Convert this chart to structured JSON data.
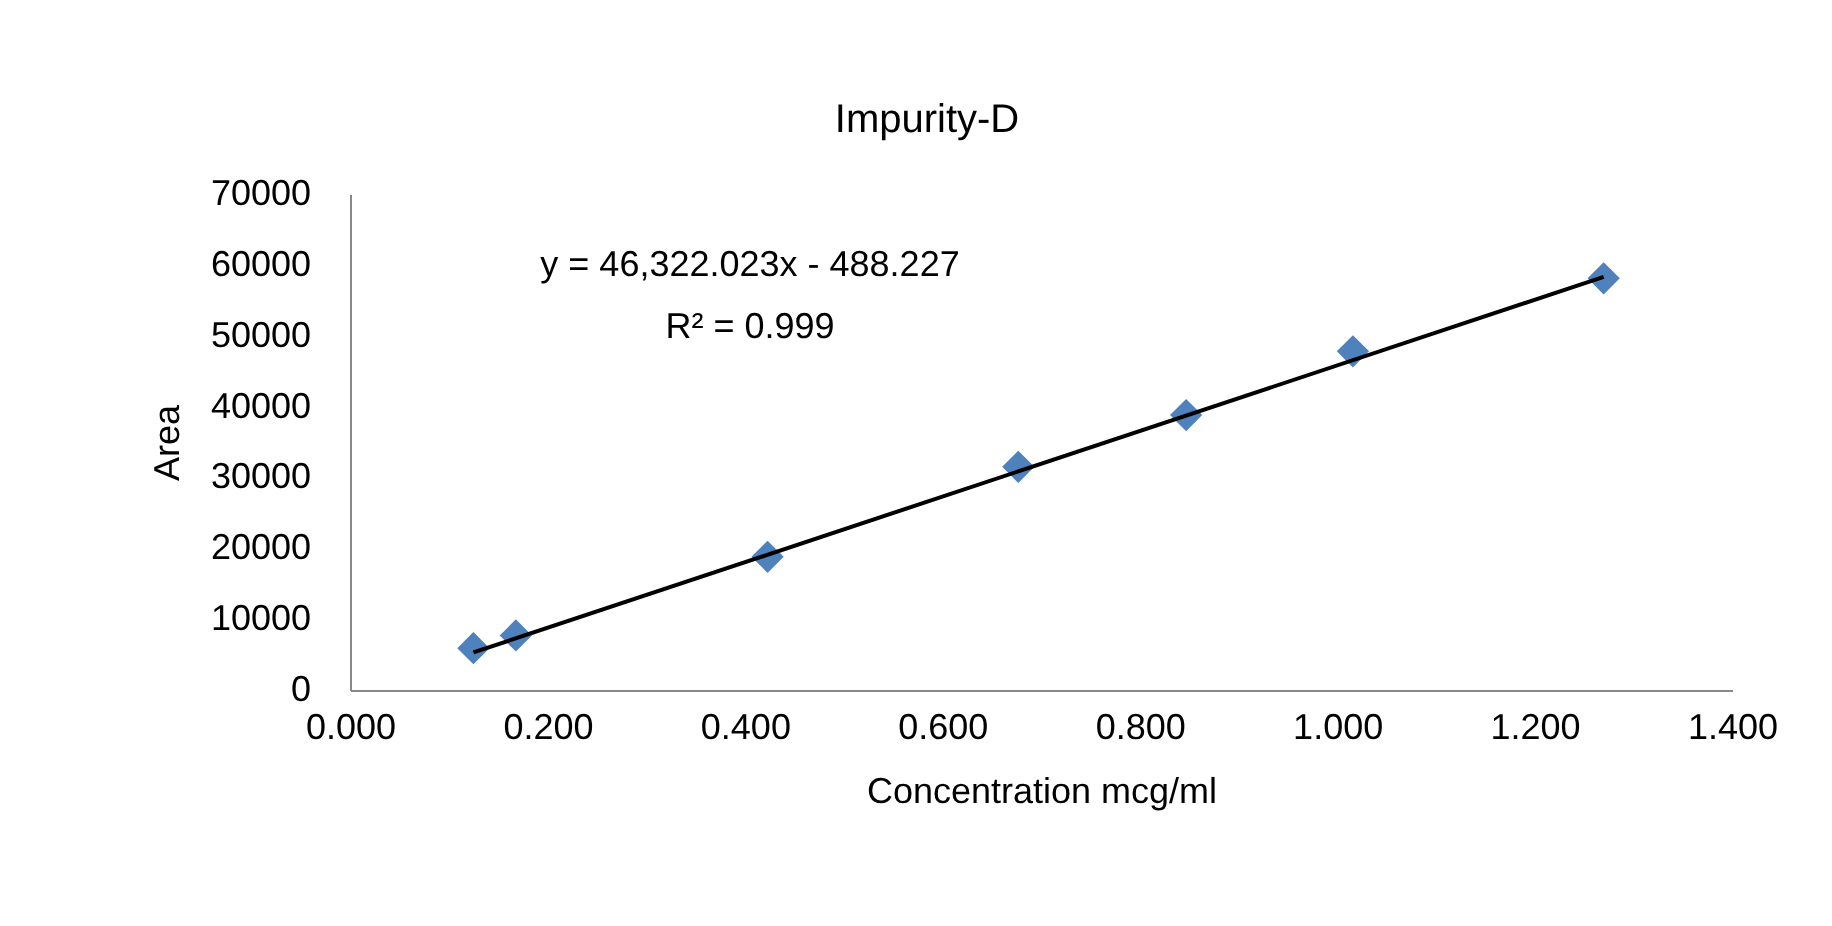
{
  "chart_data": {
    "type": "scatter",
    "title": "Impurity-D",
    "xlabel": "Concentration mcg/ml",
    "ylabel": "Area",
    "annotations": [
      "y = 46,322.023x - 488.227",
      "R² = 0.999"
    ],
    "x": [
      0.125,
      0.168,
      0.423,
      0.677,
      0.847,
      1.016,
      1.27
    ],
    "series": [
      {
        "type": "scatter",
        "color": "#4f81bd",
        "values": [
          5900,
          7700,
          18800,
          31500,
          38800,
          47800,
          58100
        ]
      },
      {
        "type": "line",
        "color": "#000000",
        "x": [
          0.125,
          1.27
        ],
        "values": [
          5300,
          58300
        ],
        "marker": "none"
      }
    ],
    "xlim": [
      0,
      1.4
    ],
    "xticks": [
      {
        "value": 0,
        "label": "0.000"
      },
      {
        "value": 0.2,
        "label": "0.200"
      },
      {
        "value": 0.4,
        "label": "0.400"
      },
      {
        "value": 0.6,
        "label": "0.600"
      },
      {
        "value": 0.8,
        "label": "0.800"
      },
      {
        "value": 1.0,
        "label": "1.000"
      },
      {
        "value": 1.2,
        "label": "1.200"
      },
      {
        "value": 1.4,
        "label": "1.400"
      }
    ],
    "ylim": [
      0,
      70000
    ],
    "yticks": [
      0,
      10000,
      20000,
      30000,
      40000,
      50000,
      60000,
      70000
    ],
    "marker": "diamond",
    "grid": false
  }
}
